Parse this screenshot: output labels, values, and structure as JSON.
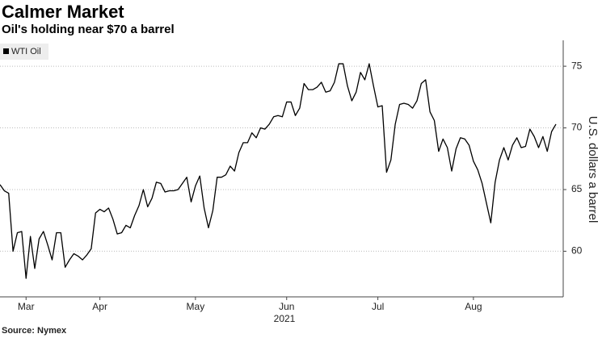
{
  "chart_data": {
    "type": "line",
    "title": "Calmer Market",
    "subtitle": "Oil's holding near $70 a barrel",
    "y_axis_label": "U.S. dollars a barrel",
    "year_label": "2021",
    "source": "Source: Nymex",
    "categories": [
      null,
      null,
      null,
      null,
      null,
      null,
      "Mar",
      null,
      null,
      null,
      null,
      null,
      null,
      null,
      null,
      null,
      null,
      null,
      null,
      null,
      null,
      null,
      null,
      "Apr",
      null,
      null,
      null,
      null,
      null,
      null,
      null,
      null,
      null,
      null,
      null,
      null,
      null,
      null,
      null,
      null,
      null,
      null,
      null,
      null,
      null,
      "May",
      null,
      null,
      null,
      null,
      null,
      null,
      null,
      null,
      null,
      null,
      null,
      null,
      null,
      null,
      null,
      null,
      null,
      null,
      null,
      null,
      "Jun",
      null,
      null,
      null,
      null,
      null,
      null,
      null,
      null,
      null,
      null,
      null,
      null,
      null,
      null,
      null,
      null,
      null,
      null,
      null,
      null,
      "Jul",
      null,
      null,
      null,
      null,
      null,
      null,
      null,
      null,
      null,
      null,
      null,
      null,
      null,
      null,
      null,
      null,
      null,
      null,
      null,
      null,
      null,
      "Aug",
      null,
      null,
      null,
      null,
      null,
      null,
      null,
      null,
      null,
      null,
      null,
      null,
      null,
      null,
      null,
      null,
      null,
      null,
      null
    ],
    "series": [
      {
        "name": "WTI Oil",
        "color": "#000000",
        "values": [
          65.4,
          64.9,
          64.7,
          60.0,
          61.5,
          61.6,
          57.8,
          61.2,
          58.6,
          61.0,
          61.6,
          60.5,
          59.3,
          61.5,
          61.5,
          58.7,
          59.3,
          59.8,
          59.6,
          59.3,
          59.7,
          60.2,
          63.1,
          63.4,
          63.2,
          63.5,
          62.6,
          61.4,
          61.5,
          62.1,
          61.9,
          62.9,
          63.7,
          65.0,
          63.6,
          64.3,
          65.6,
          65.5,
          64.8,
          64.9,
          64.9,
          65.0,
          65.5,
          66.0,
          64.0,
          65.3,
          66.1,
          63.5,
          61.9,
          63.3,
          66.0,
          66.0,
          66.2,
          66.9,
          66.5,
          68.0,
          68.8,
          68.8,
          69.6,
          69.2,
          70.0,
          69.9,
          70.3,
          70.9,
          71.0,
          70.9,
          72.1,
          72.1,
          71.0,
          71.6,
          73.6,
          73.1,
          73.1,
          73.3,
          73.7,
          72.9,
          73.0,
          73.7,
          75.2,
          75.2,
          73.4,
          72.2,
          72.9,
          74.5,
          73.9,
          75.2,
          73.4,
          71.7,
          71.8,
          66.4,
          67.4,
          70.3,
          71.9,
          72.0,
          71.9,
          71.6,
          72.2,
          73.6,
          73.9,
          71.3,
          70.6,
          68.1,
          69.1,
          68.4,
          66.5,
          68.3,
          69.2,
          69.1,
          68.6,
          67.3,
          66.6,
          65.5,
          63.9,
          62.3,
          65.6,
          67.4,
          68.4,
          67.4,
          68.6,
          69.2,
          68.4,
          68.5,
          69.9,
          69.3,
          68.4,
          69.3,
          68.1,
          69.7,
          70.3
        ]
      }
    ],
    "ylim": [
      56.3,
      77.1
    ],
    "yticks": [
      60,
      65,
      70,
      75
    ],
    "grid": true,
    "legend": "top-left"
  }
}
